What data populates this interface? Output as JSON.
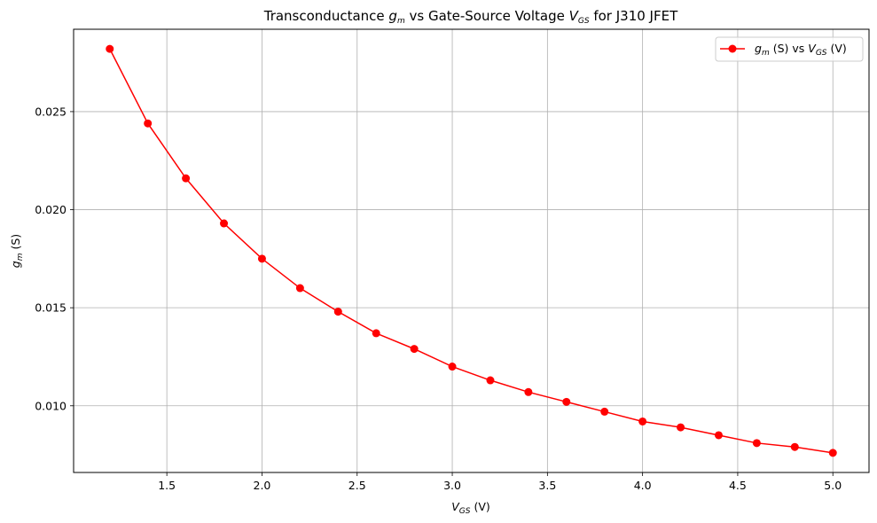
{
  "chart_data": {
    "type": "line",
    "title": {
      "prefix": "Transconductance ",
      "sym1": "g",
      "sub1": "m",
      "middle": " vs Gate-Source Voltage ",
      "sym2": "V",
      "sub2": "GS",
      "suffix": " for J310 JFET"
    },
    "xlabel": {
      "sym": "V",
      "sub": "GS",
      "rest": " (V)"
    },
    "ylabel": {
      "sym": "g",
      "sub": "m",
      "rest": " (S)"
    },
    "xlim": [
      1.01,
      5.19
    ],
    "ylim": [
      0.0066,
      0.0292
    ],
    "xticks": [
      1.5,
      2.0,
      2.5,
      3.0,
      3.5,
      4.0,
      4.5,
      5.0
    ],
    "xtick_labels": [
      "1.5",
      "2.0",
      "2.5",
      "3.0",
      "3.5",
      "4.0",
      "4.5",
      "5.0"
    ],
    "yticks": [
      0.01,
      0.015,
      0.02,
      0.025
    ],
    "ytick_labels": [
      "0.010",
      "0.015",
      "0.020",
      "0.025"
    ],
    "grid": true,
    "legend_position": "top-right",
    "series": [
      {
        "name": {
          "sym1": "g",
          "sub1": "m",
          "mid": " (S) vs ",
          "sym2": "V",
          "sub2": "GS",
          "end": " (V)"
        },
        "color": "#ff0000",
        "marker": "circle",
        "x": [
          1.2,
          1.4,
          1.6,
          1.8,
          2.0,
          2.2,
          2.4,
          2.6,
          2.8,
          3.0,
          3.2,
          3.4,
          3.6,
          3.8,
          4.0,
          4.2,
          4.4,
          4.6,
          4.8,
          5.0
        ],
        "y": [
          0.0282,
          0.0244,
          0.0216,
          0.0193,
          0.0175,
          0.016,
          0.0148,
          0.0137,
          0.0129,
          0.012,
          0.0113,
          0.0107,
          0.0102,
          0.0097,
          0.0092,
          0.0089,
          0.0085,
          0.0081,
          0.0079,
          0.0076
        ]
      }
    ]
  }
}
